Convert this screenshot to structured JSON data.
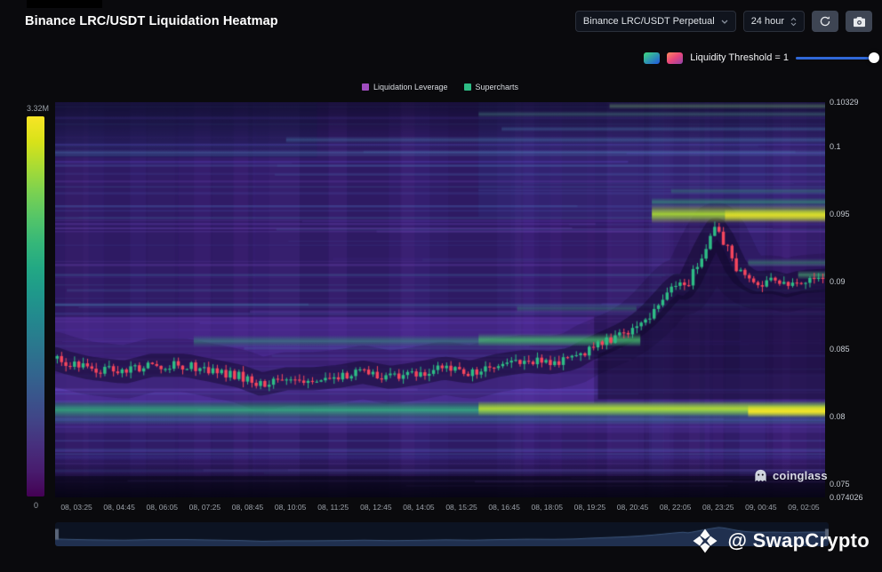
{
  "header": {
    "title": "Binance LRC/USDT Liquidation Heatmap",
    "symbol_select": "Binance LRC/USDT Perpetual",
    "interval_select": "24 hour"
  },
  "threshold": {
    "label": "Liquidity Threshold = 1",
    "value": 1,
    "chip1_gradient": [
      "#3fdc7f",
      "#2057e0"
    ],
    "chip2_gradient": [
      "#ff8a5c",
      "#e8467c",
      "#8e44ad"
    ],
    "track_color": "#3068d8",
    "handle_color": "#ffffff"
  },
  "legend": {
    "items": [
      {
        "label": "Liquidation Leverage",
        "color": "#a04dbf"
      },
      {
        "label": "Supercharts",
        "color": "#2ebd85"
      }
    ]
  },
  "colorbar": {
    "max_label": "3.32M",
    "min_label": "0",
    "gradient": [
      "#f8e525",
      "#d8e219",
      "#a8db34",
      "#7ad151",
      "#54c568",
      "#35b779",
      "#22a884",
      "#1f988b",
      "#23888e",
      "#2a788e",
      "#31688e",
      "#39568c",
      "#414487",
      "#472f7d",
      "#481c6e",
      "#440154"
    ]
  },
  "watermarks": {
    "coinglass": "coinglass",
    "swapcrypto": "@ SwapCrypto"
  },
  "chart_data": {
    "type": "heatmap",
    "subtype": "liquidation-heatmap-with-candlestick-overlay",
    "title": "Binance LRC/USDT Liquidation Heatmap",
    "legend": [
      "Liquidation Leverage",
      "Supercharts"
    ],
    "x_axis": {
      "labels": [
        "08, 03:25",
        "08, 04:45",
        "08, 06:05",
        "08, 07:25",
        "08, 08:45",
        "08, 10:05",
        "08, 11:25",
        "08, 12:45",
        "08, 14:05",
        "08, 15:25",
        "08, 16:45",
        "08, 18:05",
        "08, 19:25",
        "08, 20:45",
        "08, 22:05",
        "08, 23:25",
        "09, 00:45",
        "09, 02:05"
      ]
    },
    "price_axis": {
      "min": 0.074026,
      "max": 0.10329,
      "tick_labels": [
        "0.10329",
        "0.1",
        "0.095",
        "0.09",
        "0.085",
        "0.08",
        "0.075",
        "0.074026"
      ],
      "tick_values": [
        0.10329,
        0.1,
        0.095,
        0.09,
        0.085,
        0.08,
        0.075,
        0.074026
      ]
    },
    "colorbar": {
      "min": 0,
      "max": 3320000,
      "min_label": "0",
      "max_label": "3.32M"
    },
    "heatmap": {
      "base_color": "#2e1a63",
      "texture": {
        "seed": 7,
        "streaks": 120,
        "columns": 36
      },
      "regions": [
        {
          "x0": 0,
          "x1": 0.7,
          "p0": 0.0874,
          "p1": 0.081,
          "color": "rgba(112,64,202,0.30)"
        },
        {
          "x0": 0,
          "x1": 1,
          "p0": 0.0832,
          "p1": 0.0788,
          "color": "rgba(99,72,190,0.20)"
        },
        {
          "x0": 0,
          "x1": 0.34,
          "p0": 0.10329,
          "p1": 0.0992,
          "color": "rgba(28,38,92,0.35)"
        },
        {
          "x0": 0.55,
          "x1": 1,
          "p0": 0.10329,
          "p1": 0.0948,
          "color": "rgba(50,58,138,0.22)"
        },
        {
          "x0": 0,
          "x1": 1,
          "p0": 0.0756,
          "p1": 0.074026,
          "color": "rgba(8,5,24,0.55)"
        }
      ],
      "bands": [
        {
          "price": 0.0805,
          "from": 0,
          "to": 1,
          "color": "#31b57b",
          "half": 4.5,
          "alpha": 0.8
        },
        {
          "price": 0.0806,
          "from": 0.55,
          "to": 1,
          "color": "#c3e02d",
          "half": 3.5,
          "alpha": 0.85
        },
        {
          "price": 0.0804,
          "from": 0.9,
          "to": 1,
          "color": "#fde725",
          "half": 3,
          "alpha": 0.95
        },
        {
          "price": 0.0797,
          "from": 0,
          "to": 1,
          "color": "#27968b",
          "half": 2,
          "alpha": 0.3
        },
        {
          "price": 0.0856,
          "from": 0.18,
          "to": 0.76,
          "color": "#2fae72",
          "half": 2.8,
          "alpha": 0.45
        },
        {
          "price": 0.0857,
          "from": 0.55,
          "to": 0.76,
          "color": "#4cc76a",
          "half": 3.2,
          "alpha": 0.6
        },
        {
          "price": 0.088,
          "from": 0.6,
          "to": 0.755,
          "color": "#35b779",
          "half": 1.8,
          "alpha": 0.3
        },
        {
          "price": 0.095,
          "from": 0.775,
          "to": 1,
          "color": "#aadc32",
          "half": 4.5,
          "alpha": 0.92
        },
        {
          "price": 0.0949,
          "from": 0.87,
          "to": 1,
          "color": "#f2e327",
          "half": 3,
          "alpha": 0.75
        },
        {
          "price": 0.0959,
          "from": 0.775,
          "to": 1,
          "color": "#35b779",
          "half": 2,
          "alpha": 0.5
        },
        {
          "price": 0.0967,
          "from": 0.8,
          "to": 1,
          "color": "#35b779",
          "half": 1.5,
          "alpha": 0.3
        },
        {
          "price": 0.0914,
          "from": 0.9,
          "to": 1,
          "color": "#3fbf77",
          "half": 2,
          "alpha": 0.4
        },
        {
          "price": 0.0905,
          "from": 0.965,
          "to": 1,
          "color": "#52c77f",
          "half": 2.2,
          "alpha": 0.55
        },
        {
          "price": 0.1005,
          "from": 0.3,
          "to": 1,
          "color": "#55b0d8",
          "half": 1.6,
          "alpha": 0.28
        },
        {
          "price": 0.1013,
          "from": 0.58,
          "to": 1,
          "color": "#55b0d8",
          "half": 1.3,
          "alpha": 0.25
        },
        {
          "price": 0.0996,
          "from": 0,
          "to": 1,
          "color": "#6a9fd8",
          "half": 1.2,
          "alpha": 0.18
        },
        {
          "price": 0.1024,
          "from": 0.55,
          "to": 1,
          "color": "#5fc2a2",
          "half": 1.5,
          "alpha": 0.28
        },
        {
          "price": 0.103,
          "from": 0.72,
          "to": 1,
          "color": "#86d17b",
          "half": 1.6,
          "alpha": 0.33
        },
        {
          "price": 0.077,
          "from": 0,
          "to": 1,
          "color": "#4056c8",
          "half": 1.5,
          "alpha": 0.18
        }
      ],
      "dark_channel": {
        "color": "rgba(14,6,38,0.45)",
        "width": 26,
        "halo_width": 60,
        "halo_alpha": "rgba(14,6,38,0.18)"
      },
      "consumed_fill": {
        "t_start": 0.705,
        "floor_price": 0.0813,
        "color": "rgba(16,8,44,0.5)"
      }
    },
    "price_path": [
      [
        0,
        0.0843
      ],
      [
        0.015,
        0.084
      ],
      [
        0.044,
        0.0836
      ],
      [
        0.09,
        0.0833
      ],
      [
        0.125,
        0.0838
      ],
      [
        0.17,
        0.0838
      ],
      [
        0.205,
        0.0834
      ],
      [
        0.24,
        0.083
      ],
      [
        0.268,
        0.0824
      ],
      [
        0.3,
        0.0828
      ],
      [
        0.335,
        0.0828
      ],
      [
        0.37,
        0.083
      ],
      [
        0.4,
        0.0833
      ],
      [
        0.435,
        0.0829
      ],
      [
        0.47,
        0.0832
      ],
      [
        0.505,
        0.0836
      ],
      [
        0.54,
        0.0833
      ],
      [
        0.575,
        0.0838
      ],
      [
        0.61,
        0.0841
      ],
      [
        0.645,
        0.084
      ],
      [
        0.672,
        0.0843
      ],
      [
        0.69,
        0.0849
      ],
      [
        0.714,
        0.0855
      ],
      [
        0.737,
        0.0861
      ],
      [
        0.754,
        0.0867
      ],
      [
        0.771,
        0.0875
      ],
      [
        0.789,
        0.0886
      ],
      [
        0.8,
        0.0893
      ],
      [
        0.812,
        0.0899
      ],
      [
        0.818,
        0.0894
      ],
      [
        0.826,
        0.0903
      ],
      [
        0.835,
        0.0914
      ],
      [
        0.846,
        0.0927
      ],
      [
        0.858,
        0.0939
      ],
      [
        0.865,
        0.0934
      ],
      [
        0.875,
        0.0922
      ],
      [
        0.885,
        0.091
      ],
      [
        0.895,
        0.0903
      ],
      [
        0.91,
        0.0899
      ],
      [
        0.93,
        0.09
      ],
      [
        0.95,
        0.0897
      ],
      [
        0.97,
        0.09
      ],
      [
        1,
        0.0901
      ]
    ],
    "candles": {
      "count": 178,
      "up_color": "#2ebd85",
      "down_color": "#f6465d",
      "noise": 0.00065,
      "wick": 0.0004
    },
    "navigator": {
      "bg": "#0c1322",
      "fill": "#20304f",
      "edge": "#3c567c",
      "handle": "#5a6578",
      "range": [
        0.0805,
        0.0945
      ]
    }
  }
}
